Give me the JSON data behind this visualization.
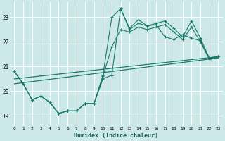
{
  "xlabel": "Humidex (Indice chaleur)",
  "bg_color": "#cce8e8",
  "line_color": "#1a7a6a",
  "grid_color": "#ffffff",
  "xlim": [
    -0.5,
    23.5
  ],
  "ylim": [
    18.6,
    23.6
  ],
  "yticks": [
    19,
    20,
    21,
    22,
    23
  ],
  "xtick_labels": [
    "0",
    "1",
    "2",
    "3",
    "4",
    "5",
    "6",
    "7",
    "8",
    "9",
    "10",
    "11",
    "12",
    "13",
    "14",
    "15",
    "16",
    "17",
    "18",
    "19",
    "20",
    "21",
    "22",
    "23"
  ],
  "series1_x": [
    0,
    1,
    2,
    3,
    4,
    5,
    6,
    7,
    8,
    9,
    10,
    11,
    12,
    13,
    14,
    15,
    16,
    17,
    18,
    19,
    20,
    21,
    22,
    23
  ],
  "series1_y": [
    20.8,
    20.3,
    19.65,
    19.8,
    19.55,
    19.1,
    19.2,
    19.2,
    19.5,
    19.5,
    20.5,
    20.65,
    23.35,
    22.5,
    22.75,
    22.65,
    22.7,
    22.2,
    22.1,
    22.3,
    22.15,
    22.05,
    21.35,
    21.4
  ],
  "series2_x": [
    0,
    1,
    2,
    3,
    4,
    5,
    6,
    7,
    8,
    9,
    10,
    11,
    12,
    13,
    14,
    15,
    16,
    17,
    18,
    19,
    20,
    21,
    22,
    23
  ],
  "series2_y": [
    20.8,
    20.3,
    19.65,
    19.8,
    19.55,
    19.1,
    19.2,
    19.2,
    19.5,
    19.5,
    20.65,
    23.0,
    23.35,
    22.55,
    22.9,
    22.65,
    22.75,
    22.85,
    22.55,
    22.2,
    22.85,
    22.15,
    21.35,
    21.4
  ],
  "series3_x": [
    0,
    1,
    2,
    3,
    4,
    5,
    6,
    7,
    8,
    9,
    10,
    11,
    12,
    13,
    14,
    15,
    16,
    17,
    18,
    19,
    20,
    21,
    22,
    23
  ],
  "series3_y": [
    20.8,
    20.3,
    19.65,
    19.8,
    19.55,
    19.1,
    19.2,
    19.2,
    19.5,
    19.5,
    20.6,
    21.8,
    22.5,
    22.4,
    22.6,
    22.5,
    22.6,
    22.7,
    22.4,
    22.1,
    22.6,
    22.0,
    21.3,
    21.4
  ],
  "trend1_x": [
    0,
    23
  ],
  "trend1_y": [
    20.5,
    21.4
  ],
  "trend2_x": [
    0,
    23
  ],
  "trend2_y": [
    20.3,
    21.35
  ]
}
